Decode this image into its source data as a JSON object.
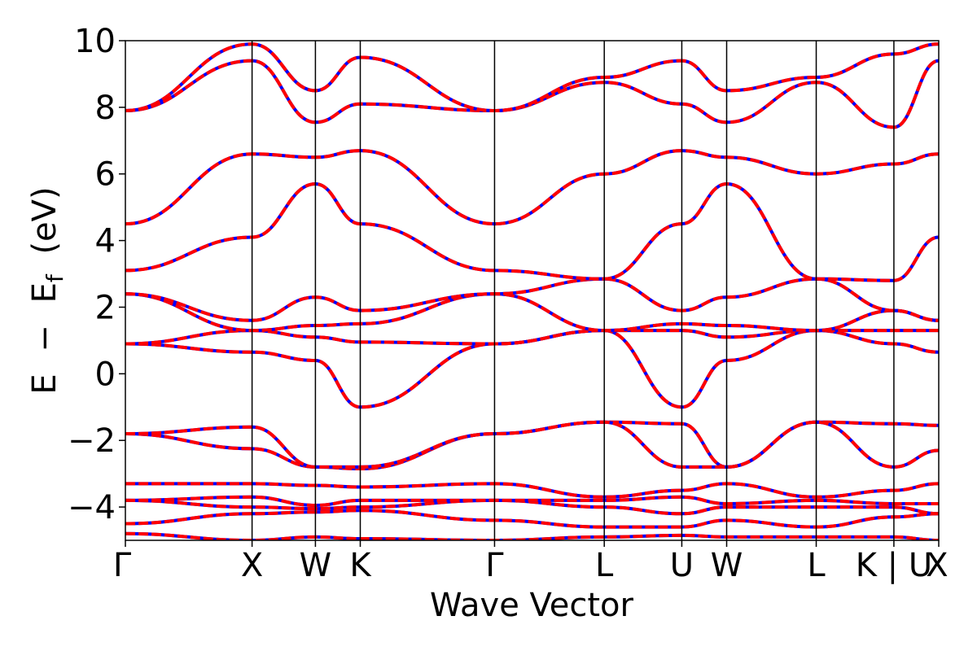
{
  "chart_data": {
    "type": "line",
    "title": "",
    "xlabel": "Wave Vector",
    "ylabel_parts": {
      "E": "E",
      "minus": "−",
      "Ef_E": "E",
      "Ef_sub": "f",
      "unit": "(eV)"
    },
    "ylim": [
      -5,
      10
    ],
    "y_ticks": [
      -4,
      -2,
      0,
      2,
      4,
      6,
      8,
      10
    ],
    "y_tick_labels": [
      "−4",
      "−2",
      "0",
      "2",
      "4",
      "6",
      "8",
      "10"
    ],
    "grid": false,
    "legend": "none",
    "k_points": [
      {
        "label": "Γ",
        "x": 0
      },
      {
        "label": "X",
        "x": 1.0
      },
      {
        "label": "W",
        "x": 1.5
      },
      {
        "label": "K",
        "x": 1.854
      },
      {
        "label": "Γ",
        "x": 2.914
      },
      {
        "label": "L",
        "x": 3.78
      },
      {
        "label": "U",
        "x": 4.392
      },
      {
        "label": "W",
        "x": 4.746
      },
      {
        "label": "L",
        "x": 5.453
      },
      {
        "label": "K | U",
        "x": 6.066
      },
      {
        "label": "X",
        "x": 6.42
      }
    ],
    "xlim": [
      0,
      6.42
    ],
    "colors": {
      "dft": "#0000ff",
      "wannier": "#ff0000"
    },
    "bands": [
      {
        "name": "b01",
        "values": [
          -4.8,
          -5.0,
          -4.9,
          -4.95,
          -5.0,
          -4.9,
          -4.85,
          -4.9,
          -4.9,
          -4.9,
          -5.0
        ]
      },
      {
        "name": "b02",
        "values": [
          -4.5,
          -4.2,
          -4.15,
          -4.1,
          -4.4,
          -4.6,
          -4.6,
          -4.4,
          -4.6,
          -4.3,
          -4.2
        ]
      },
      {
        "name": "b03",
        "values": [
          -3.8,
          -4.0,
          -4.05,
          -4.0,
          -3.8,
          -4.0,
          -4.2,
          -4.0,
          -4.0,
          -4.0,
          -4.2
        ]
      },
      {
        "name": "b04",
        "values": [
          -3.8,
          -3.7,
          -3.95,
          -3.8,
          -3.8,
          -3.8,
          -3.7,
          -3.9,
          -3.8,
          -3.9,
          -3.9
        ]
      },
      {
        "name": "b05",
        "values": [
          -3.3,
          -3.3,
          -3.35,
          -3.4,
          -3.3,
          -3.7,
          -3.5,
          -3.3,
          -3.7,
          -3.5,
          -3.3
        ]
      },
      {
        "name": "b06",
        "values": [
          -1.8,
          -2.25,
          -2.8,
          -2.85,
          -1.8,
          -1.45,
          -1.5,
          -2.8,
          -1.45,
          -1.5,
          -1.55
        ]
      },
      {
        "name": "b07",
        "values": [
          -1.8,
          -1.6,
          -2.8,
          -2.8,
          -1.8,
          -1.45,
          -2.8,
          -2.8,
          -1.45,
          -2.8,
          -2.3
        ]
      },
      {
        "name": "b08",
        "values": [
          0.9,
          0.65,
          0.4,
          -1.0,
          0.9,
          1.3,
          -1.0,
          0.4,
          1.3,
          0.9,
          0.65
        ]
      },
      {
        "name": "b09",
        "values": [
          0.9,
          1.3,
          1.1,
          0.95,
          0.9,
          1.3,
          1.3,
          1.1,
          1.3,
          1.3,
          1.3
        ]
      },
      {
        "name": "b10",
        "values": [
          2.4,
          1.3,
          1.45,
          1.5,
          2.4,
          1.3,
          1.5,
          1.45,
          1.3,
          1.9,
          1.6
        ]
      },
      {
        "name": "b11",
        "values": [
          2.4,
          1.6,
          2.3,
          1.9,
          2.4,
          2.85,
          1.9,
          2.3,
          2.85,
          1.9,
          1.6
        ]
      },
      {
        "name": "b12",
        "values": [
          3.1,
          4.1,
          5.7,
          4.5,
          3.1,
          2.85,
          4.5,
          5.7,
          2.85,
          2.8,
          4.1
        ]
      },
      {
        "name": "b13",
        "values": [
          4.5,
          6.6,
          6.5,
          6.7,
          4.5,
          6.0,
          6.7,
          6.5,
          6.0,
          6.3,
          6.6
        ]
      },
      {
        "name": "b14",
        "values": [
          7.9,
          9.4,
          7.55,
          8.1,
          7.9,
          8.75,
          8.1,
          7.55,
          8.75,
          7.4,
          9.4
        ]
      },
      {
        "name": "b15",
        "values": [
          7.9,
          9.9,
          8.5,
          9.5,
          7.9,
          8.9,
          9.4,
          8.5,
          8.9,
          9.6,
          9.9
        ]
      }
    ]
  }
}
